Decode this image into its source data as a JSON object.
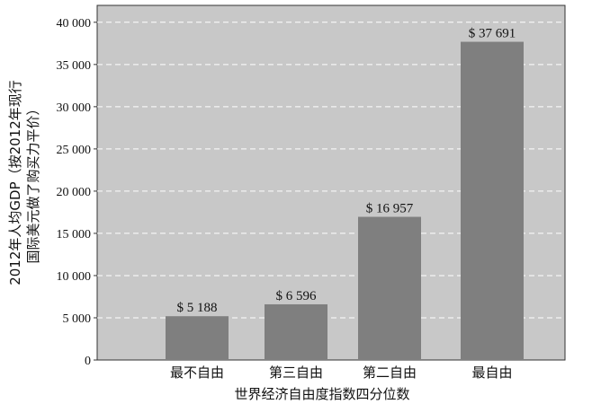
{
  "chart_data": {
    "type": "bar",
    "categories": [
      "最不自由",
      "第三自由",
      "第二自由",
      "最自由"
    ],
    "values": [
      5188,
      6596,
      16957,
      37691
    ],
    "data_labels": [
      "$ 5 188",
      "$ 6 596",
      "$ 16 957",
      "$ 37 691"
    ],
    "xlabel": "世界经济自由度指数四分位数",
    "ylabel_line1": "2012年人均GDP（按2012年现行",
    "ylabel_line2": "国际美元做了购买力平价）",
    "ylim": [
      0,
      42000
    ],
    "yticks": [
      0,
      5000,
      10000,
      15000,
      20000,
      25000,
      30000,
      35000,
      40000
    ],
    "ytick_labels": [
      "0",
      "5 000",
      "10 000",
      "15 000",
      "20 000",
      "25 000",
      "30 000",
      "35 000",
      "40 000"
    ],
    "grid": true,
    "colors": {
      "plot_bg": "#c8c8c8",
      "bar": "#7f7f7f",
      "grid": "#ffffff"
    }
  }
}
